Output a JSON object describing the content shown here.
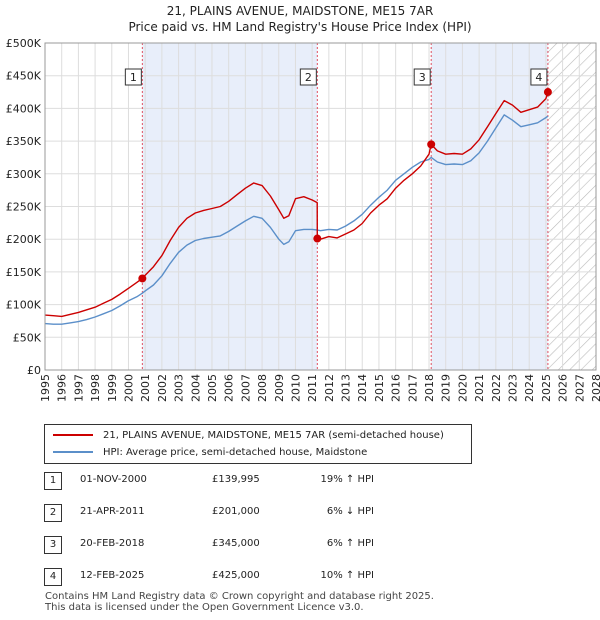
{
  "header": {
    "title": "21, PLAINS AVENUE, MAIDSTONE, ME15 7AR",
    "subtitle": "Price paid vs. HM Land Registry's House Price Index (HPI)"
  },
  "legend": {
    "items": [
      {
        "label": "21, PLAINS AVENUE, MAIDSTONE, ME15 7AR (semi-detached house)",
        "color": "#cc0000"
      },
      {
        "label": "HPI: Average price, semi-detached house, Maidstone",
        "color": "#5b8fc9"
      }
    ]
  },
  "sales": [
    {
      "n": "1",
      "date": "01-NOV-2000",
      "price": "£139,995",
      "hpi": "19% ↑ HPI"
    },
    {
      "n": "2",
      "date": "21-APR-2011",
      "price": "£201,000",
      "hpi": "6% ↓ HPI"
    },
    {
      "n": "3",
      "date": "20-FEB-2018",
      "price": "£345,000",
      "hpi": "6% ↑ HPI"
    },
    {
      "n": "4",
      "date": "12-FEB-2025",
      "price": "£425,000",
      "hpi": "10% ↑ HPI"
    }
  ],
  "footer": {
    "line1": "Contains HM Land Registry data © Crown copyright and database right 2025.",
    "line2": "This data is licensed under the Open Government Licence v3.0."
  },
  "chart_data": {
    "type": "line",
    "title": "21, PLAINS AVENUE, MAIDSTONE, ME15 7AR",
    "subtitle": "Price paid vs. HM Land Registry's House Price Index (HPI)",
    "xlim": [
      1995,
      2028
    ],
    "ylim": [
      0,
      500000
    ],
    "x_ticks": [
      1995,
      1996,
      1997,
      1998,
      1999,
      2000,
      2001,
      2002,
      2003,
      2004,
      2005,
      2006,
      2007,
      2008,
      2009,
      2010,
      2011,
      2012,
      2013,
      2014,
      2015,
      2016,
      2017,
      2018,
      2019,
      2020,
      2021,
      2022,
      2023,
      2024,
      2025,
      2026,
      2027,
      2028
    ],
    "y_ticks": [
      0,
      50000,
      100000,
      150000,
      200000,
      250000,
      300000,
      350000,
      400000,
      450000,
      500000
    ],
    "y_tick_labels": [
      "£0",
      "£50K",
      "£100K",
      "£150K",
      "£200K",
      "£250K",
      "£300K",
      "£350K",
      "£400K",
      "£450K",
      "£500K"
    ],
    "hatched_from_year": 2025.12,
    "colors": {
      "property": "#cc0000",
      "hpi": "#5b8fc9",
      "sale_line": "#e05060",
      "band": "#e8eefa"
    },
    "series": [
      {
        "name": "21, PLAINS AVENUE, MAIDSTONE, ME15 7AR (semi-detached house)",
        "x": [
          1995,
          1995.5,
          1996,
          1996.5,
          1997,
          1997.5,
          1998,
          1998.5,
          1999,
          1999.5,
          2000,
          2000.5,
          2000.83,
          2001,
          2001.5,
          2002,
          2002.5,
          2003,
          2003.5,
          2004,
          2004.5,
          2005,
          2005.5,
          2006,
          2006.5,
          2007,
          2007.5,
          2008,
          2008.5,
          2009,
          2009.3,
          2009.6,
          2010,
          2010.5,
          2011,
          2011.3,
          2011.31,
          2011.5,
          2012,
          2012.5,
          2013,
          2013.5,
          2014,
          2014.5,
          2015,
          2015.5,
          2016,
          2016.5,
          2017,
          2017.5,
          2018,
          2018.13,
          2018.5,
          2019,
          2019.5,
          2020,
          2020.5,
          2021,
          2021.5,
          2022,
          2022.5,
          2023,
          2023.5,
          2024,
          2024.5,
          2025,
          2025.12
        ],
        "values": [
          84000,
          83000,
          82000,
          85000,
          88000,
          92000,
          96000,
          102000,
          108000,
          116000,
          125000,
          134000,
          139995,
          145000,
          158000,
          175000,
          198000,
          218000,
          232000,
          240000,
          244000,
          247000,
          250000,
          258000,
          268000,
          278000,
          286000,
          282000,
          266000,
          245000,
          232000,
          236000,
          262000,
          265000,
          260000,
          256000,
          201000,
          200000,
          204000,
          202000,
          208000,
          214000,
          224000,
          240000,
          252000,
          262000,
          278000,
          290000,
          300000,
          312000,
          330000,
          345000,
          335000,
          330000,
          331000,
          330000,
          338000,
          352000,
          372000,
          392000,
          412000,
          405000,
          394000,
          398000,
          402000,
          415000,
          425000
        ]
      },
      {
        "name": "HPI: Average price, semi-detached house, Maidstone",
        "x": [
          1995,
          1995.5,
          1996,
          1996.5,
          1997,
          1997.5,
          1998,
          1998.5,
          1999,
          1999.5,
          2000,
          2000.5,
          2000.83,
          2001,
          2001.5,
          2002,
          2002.5,
          2003,
          2003.5,
          2004,
          2004.5,
          2005,
          2005.5,
          2006,
          2006.5,
          2007,
          2007.5,
          2008,
          2008.5,
          2009,
          2009.3,
          2009.6,
          2010,
          2010.5,
          2011,
          2011.3,
          2011.5,
          2012,
          2012.5,
          2013,
          2013.5,
          2014,
          2014.5,
          2015,
          2015.5,
          2016,
          2016.5,
          2017,
          2017.5,
          2018,
          2018.13,
          2018.5,
          2019,
          2019.5,
          2020,
          2020.5,
          2021,
          2021.5,
          2022,
          2022.5,
          2023,
          2023.5,
          2024,
          2024.5,
          2025,
          2025.12
        ],
        "values": [
          71000,
          70000,
          70000,
          72000,
          74000,
          77000,
          81000,
          86000,
          91000,
          98000,
          106000,
          112000,
          117500,
          121000,
          130000,
          144000,
          163000,
          180000,
          191000,
          198000,
          201000,
          203000,
          205000,
          212000,
          220000,
          228000,
          235000,
          232000,
          218000,
          200000,
          192000,
          196000,
          213000,
          215000,
          215000,
          214000,
          213000,
          215000,
          214000,
          220000,
          228000,
          238000,
          252000,
          264000,
          275000,
          290000,
          300000,
          310000,
          318000,
          322000,
          325000,
          318000,
          314000,
          315000,
          314000,
          320000,
          332000,
          350000,
          370000,
          390000,
          382000,
          372000,
          375000,
          378000,
          386000,
          388000
        ]
      }
    ],
    "sales": [
      {
        "label": "1",
        "year": 2000.83,
        "price": 139995
      },
      {
        "label": "2",
        "year": 2011.31,
        "price": 201000
      },
      {
        "label": "3",
        "year": 2018.13,
        "price": 345000
      },
      {
        "label": "4",
        "year": 2025.12,
        "price": 425000
      }
    ]
  }
}
